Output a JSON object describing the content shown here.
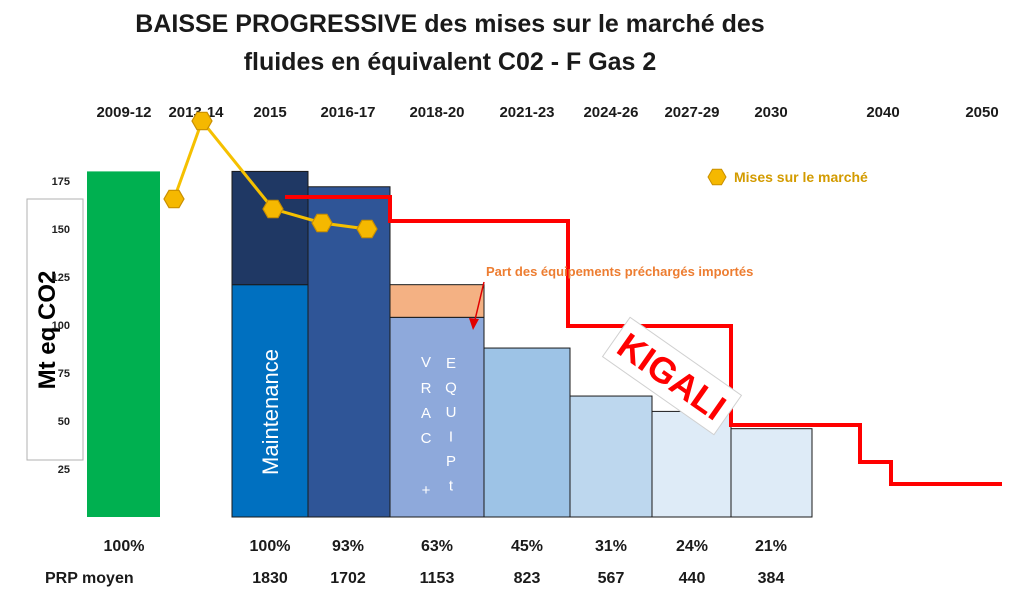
{
  "chart_data": {
    "type": "bar",
    "title_lines": [
      "BAISSE PROGRESSIVE des mises sur le marché des",
      "fluides en équivalent C02 - F Gas 2"
    ],
    "ylabel": "Mt eq CO2",
    "yticks": [
      25,
      50,
      75,
      100,
      125,
      150,
      175
    ],
    "ylim": [
      0,
      180
    ],
    "period_labels": [
      "2009-12",
      "2013-14",
      "2015",
      "2016-17",
      "2018-20",
      "2021-23",
      "2024-26",
      "2027-29",
      "2030",
      "2040",
      "2050"
    ],
    "bars": [
      {
        "period": "2009-12",
        "value": 180,
        "color": "#00B050"
      },
      {
        "period": "2015",
        "value": 180,
        "color": "#0070C0",
        "segments": [
          {
            "value": 121,
            "color": "#0070C0"
          },
          {
            "value": 59,
            "color": "#1F3864"
          }
        ],
        "label": "Maintenance"
      },
      {
        "period": "2016-17",
        "value": 172,
        "color": "#2F5597"
      },
      {
        "period": "2018-20",
        "value": 121,
        "color": "#8EA9DB",
        "segments": [
          {
            "value": 104,
            "color": "#8EA9DB"
          },
          {
            "value": 17,
            "color": "#F4B183"
          }
        ],
        "label_left": "VRAC+",
        "label_right": "EQUIPt"
      },
      {
        "period": "2021-23",
        "value": 88,
        "color": "#9DC3E6"
      },
      {
        "period": "2024-26",
        "value": 63,
        "color": "#BDD7EE"
      },
      {
        "period": "2027-29",
        "value": 55,
        "color": "#DEEBF7"
      },
      {
        "period": "2030",
        "value": 46,
        "color": "#DEEBF7"
      }
    ],
    "mises_series": {
      "name": "Mises sur le marché",
      "color": "#F5B800",
      "line_color": "#F5C000",
      "points": [
        {
          "period": "2013-14",
          "value": 180
        },
        {
          "period": "2013-14",
          "value": 210
        },
        {
          "period": "2015",
          "value": 175
        },
        {
          "period": "2016-17",
          "value": 167
        },
        {
          "period": "2016-17",
          "value": 164
        }
      ]
    },
    "kigali_line": {
      "color": "#FF0000",
      "label": "KIGALI"
    },
    "annotation": {
      "text": "Part des équipements préchargés importés",
      "color": "#ED7D31"
    },
    "percent_row": [
      {
        "period": "2009-12",
        "value": "100%"
      },
      {
        "period": "2015",
        "value": "100%"
      },
      {
        "period": "2016-17",
        "value": "93%"
      },
      {
        "period": "2018-20",
        "value": "63%"
      },
      {
        "period": "2021-23",
        "value": "45%"
      },
      {
        "period": "2024-26",
        "value": "31%"
      },
      {
        "period": "2027-29",
        "value": "24%"
      },
      {
        "period": "2030",
        "value": "21%"
      }
    ],
    "prp_label": "PRP moyen",
    "prp_row": [
      {
        "period": "2015",
        "value": "1830"
      },
      {
        "period": "2016-17",
        "value": "1702"
      },
      {
        "period": "2018-20",
        "value": "1153"
      },
      {
        "period": "2021-23",
        "value": "823"
      },
      {
        "period": "2024-26",
        "value": "567"
      },
      {
        "period": "2027-29",
        "value": "440"
      },
      {
        "period": "2030",
        "value": "384"
      }
    ]
  }
}
